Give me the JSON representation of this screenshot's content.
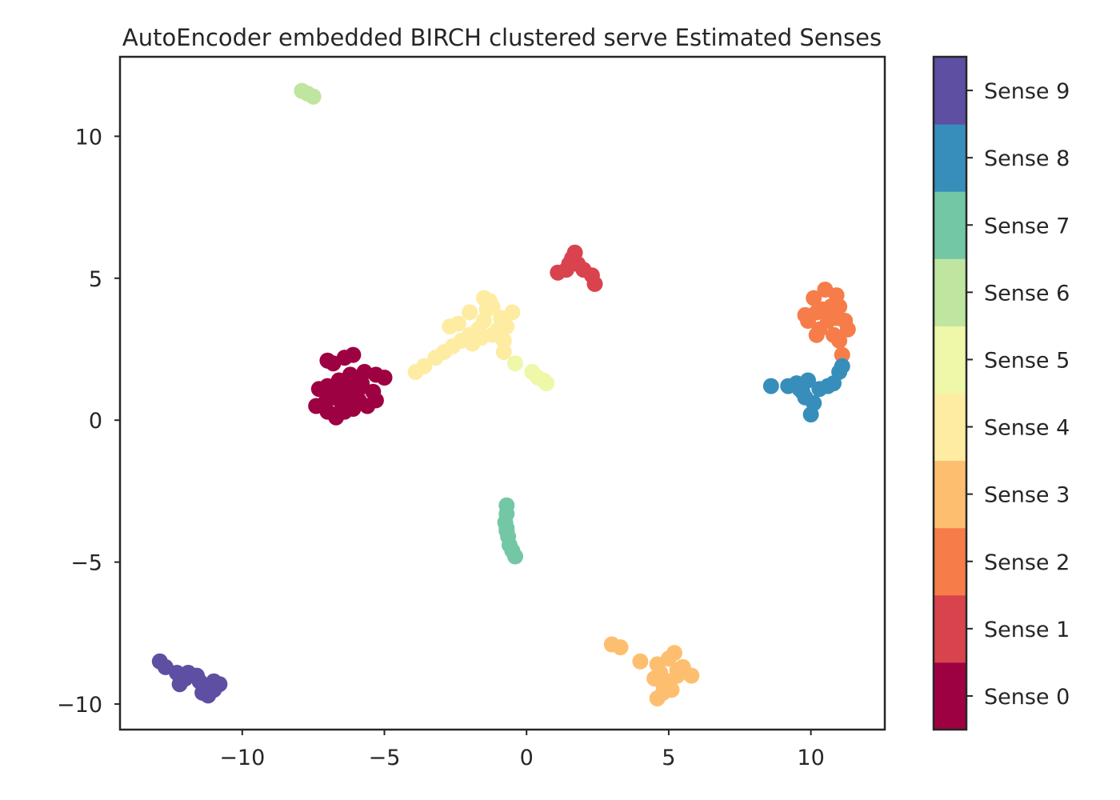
{
  "chart_data": {
    "type": "scatter",
    "title": "AutoEncoder embedded BIRCH clustered serve Estimated Senses",
    "xlabel": "",
    "ylabel": "",
    "xlim": [
      -14.3,
      12.6
    ],
    "ylim": [
      -10.9,
      12.8
    ],
    "x_ticks": [
      -10,
      -5,
      0,
      5,
      10
    ],
    "x_tick_labels": [
      "−10",
      "−5",
      "0",
      "5",
      "10"
    ],
    "y_ticks": [
      -10,
      -5,
      0,
      5,
      10
    ],
    "y_tick_labels": [
      "−10",
      "−5",
      "0",
      "5",
      "10"
    ],
    "grid": false,
    "colorbar": {
      "position": "right",
      "labels": [
        "Sense 0",
        "Sense 1",
        "Sense 2",
        "Sense 3",
        "Sense 4",
        "Sense 5",
        "Sense 6",
        "Sense 7",
        "Sense 8",
        "Sense 9"
      ],
      "colors": [
        "#9e0142",
        "#d8434e",
        "#f67d4a",
        "#fdbf6f",
        "#feeca2",
        "#eef8a8",
        "#bfe5a0",
        "#74c7a5",
        "#378ebb",
        "#5e4fa2"
      ]
    },
    "series": [
      {
        "sense": 0,
        "points": [
          [
            -7.0,
            2.1
          ],
          [
            -6.8,
            2.0
          ],
          [
            -6.4,
            2.2
          ],
          [
            -6.1,
            2.3
          ],
          [
            -5.7,
            1.7
          ],
          [
            -5.3,
            1.6
          ],
          [
            -5.0,
            1.5
          ],
          [
            -7.3,
            1.1
          ],
          [
            -7.0,
            1.2
          ],
          [
            -6.6,
            1.4
          ],
          [
            -6.2,
            1.6
          ],
          [
            -5.8,
            1.3
          ],
          [
            -5.4,
            1.0
          ],
          [
            -5.3,
            0.7
          ],
          [
            -7.4,
            0.5
          ],
          [
            -7.1,
            0.6
          ],
          [
            -6.8,
            0.8
          ],
          [
            -6.5,
            1.0
          ],
          [
            -6.2,
            0.9
          ],
          [
            -5.9,
            0.7
          ],
          [
            -5.6,
            0.5
          ],
          [
            -7.0,
            0.3
          ],
          [
            -6.7,
            0.2
          ],
          [
            -6.4,
            0.3
          ],
          [
            -6.1,
            0.4
          ],
          [
            -6.7,
            0.1
          ],
          [
            -6.9,
            0.9
          ],
          [
            -6.3,
            1.2
          ],
          [
            -5.9,
            1.1
          ],
          [
            -6.5,
            0.6
          ]
        ]
      },
      {
        "sense": 1,
        "points": [
          [
            1.6,
            5.7
          ],
          [
            1.8,
            5.5
          ],
          [
            1.4,
            5.3
          ],
          [
            1.1,
            5.2
          ],
          [
            2.0,
            5.3
          ],
          [
            2.3,
            5.1
          ],
          [
            2.4,
            4.8
          ],
          [
            1.7,
            5.9
          ],
          [
            1.5,
            5.5
          ]
        ]
      },
      {
        "sense": 2,
        "points": [
          [
            10.1,
            4.3
          ],
          [
            10.5,
            4.6
          ],
          [
            10.9,
            4.4
          ],
          [
            11.0,
            4.0
          ],
          [
            11.2,
            3.5
          ],
          [
            11.3,
            3.2
          ],
          [
            9.8,
            3.7
          ],
          [
            10.2,
            3.8
          ],
          [
            10.6,
            3.5
          ],
          [
            10.8,
            3.0
          ],
          [
            11.0,
            2.8
          ],
          [
            11.1,
            2.3
          ],
          [
            10.3,
            3.2
          ],
          [
            9.9,
            3.5
          ],
          [
            10.7,
            4.0
          ],
          [
            10.4,
            3.9
          ],
          [
            10.9,
            3.6
          ],
          [
            10.2,
            3.0
          ]
        ]
      },
      {
        "sense": 3,
        "points": [
          [
            3.0,
            -7.9
          ],
          [
            3.3,
            -8.0
          ],
          [
            4.0,
            -8.5
          ],
          [
            4.6,
            -8.6
          ],
          [
            5.0,
            -8.4
          ],
          [
            5.2,
            -8.2
          ],
          [
            5.5,
            -8.7
          ],
          [
            5.8,
            -9.0
          ],
          [
            4.5,
            -9.1
          ],
          [
            4.8,
            -9.3
          ],
          [
            5.1,
            -9.5
          ],
          [
            5.3,
            -9.0
          ],
          [
            4.6,
            -9.8
          ],
          [
            4.8,
            -9.6
          ],
          [
            5.0,
            -9.2
          ],
          [
            4.7,
            -8.9
          ],
          [
            5.3,
            -8.8
          ]
        ]
      },
      {
        "sense": 4,
        "points": [
          [
            -3.9,
            1.7
          ],
          [
            -3.6,
            1.9
          ],
          [
            -3.2,
            2.2
          ],
          [
            -2.9,
            2.4
          ],
          [
            -2.6,
            2.6
          ],
          [
            -2.3,
            2.8
          ],
          [
            -2.0,
            3.0
          ],
          [
            -1.7,
            3.2
          ],
          [
            -1.5,
            3.5
          ],
          [
            -1.4,
            3.9
          ],
          [
            -1.5,
            4.3
          ],
          [
            -2.0,
            3.8
          ],
          [
            -2.4,
            3.4
          ],
          [
            -1.2,
            3.0
          ],
          [
            -1.0,
            3.2
          ],
          [
            -0.9,
            3.6
          ],
          [
            -1.2,
            4.0
          ],
          [
            -0.7,
            3.3
          ],
          [
            -0.8,
            2.8
          ],
          [
            -0.5,
            3.8
          ],
          [
            -0.8,
            2.4
          ],
          [
            -1.6,
            2.9
          ],
          [
            -2.7,
            3.3
          ],
          [
            -1.9,
            2.7
          ],
          [
            -1.3,
            4.2
          ]
        ]
      },
      {
        "sense": 5,
        "points": [
          [
            -0.4,
            2.0
          ],
          [
            0.2,
            1.7
          ],
          [
            0.4,
            1.5
          ],
          [
            0.6,
            1.4
          ],
          [
            0.7,
            1.3
          ]
        ]
      },
      {
        "sense": 6,
        "points": [
          [
            -7.9,
            11.6
          ],
          [
            -7.7,
            11.5
          ],
          [
            -7.5,
            11.4
          ]
        ]
      },
      {
        "sense": 7,
        "points": [
          [
            -0.7,
            -3.0
          ],
          [
            -0.7,
            -3.3
          ],
          [
            -0.75,
            -3.6
          ],
          [
            -0.7,
            -3.9
          ],
          [
            -0.65,
            -4.1
          ],
          [
            -0.6,
            -4.4
          ],
          [
            -0.5,
            -4.6
          ],
          [
            -0.4,
            -4.8
          ],
          [
            -0.7,
            -3.8
          ]
        ]
      },
      {
        "sense": 8,
        "points": [
          [
            8.6,
            1.2
          ],
          [
            9.2,
            1.2
          ],
          [
            9.5,
            1.3
          ],
          [
            9.7,
            1.0
          ],
          [
            9.8,
            0.8
          ],
          [
            9.9,
            1.4
          ],
          [
            10.1,
            0.6
          ],
          [
            10.0,
            0.2
          ],
          [
            10.3,
            1.1
          ],
          [
            10.6,
            1.2
          ],
          [
            10.8,
            1.3
          ],
          [
            11.0,
            1.7
          ],
          [
            11.1,
            1.9
          ],
          [
            9.6,
            1.1
          ]
        ]
      },
      {
        "sense": 9,
        "points": [
          [
            -12.9,
            -8.5
          ],
          [
            -12.7,
            -8.7
          ],
          [
            -12.3,
            -8.9
          ],
          [
            -12.0,
            -9.1
          ],
          [
            -11.9,
            -8.9
          ],
          [
            -11.6,
            -9.0
          ],
          [
            -12.2,
            -9.3
          ],
          [
            -11.3,
            -9.4
          ],
          [
            -11.0,
            -9.2
          ],
          [
            -10.8,
            -9.3
          ],
          [
            -11.2,
            -9.7
          ],
          [
            -11.4,
            -9.6
          ],
          [
            -11.0,
            -9.5
          ],
          [
            -11.5,
            -9.2
          ]
        ]
      }
    ]
  }
}
